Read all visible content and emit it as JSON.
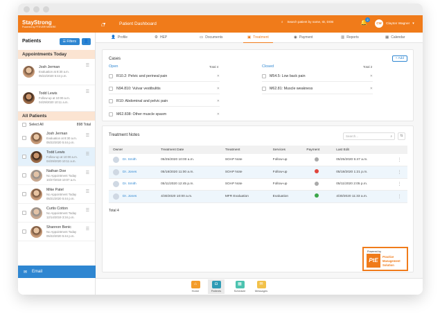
{
  "colors": {
    "brand": "#f07b1a",
    "accent": "#2e86d1",
    "section_bg": "#fbe4d2",
    "pay_neutral": "#aaaaaa",
    "pay_unpaid": "#e0463c",
    "pay_paid": "#3aa64a"
  },
  "header": {
    "brand": "StayStrong",
    "brand_sub": "Powered by PTEVERYWHERE",
    "page_title": "Patient Dashboard",
    "search_placeholder": "Search patient by name, ID, DOB",
    "notification_count": "2",
    "user_initials": "CW",
    "user_name": "Clayton Wagner"
  },
  "sidebar": {
    "title": "Patients",
    "filter_label": "Filters",
    "appointments_title": "Appointments Today",
    "appointments": [
      {
        "name": "Josh Jerman",
        "line1": "Evaluation at 8:30 a.m.",
        "line2": "05/22/2020 5:44 p.m."
      },
      {
        "name": "Todd Lewis",
        "line1": "Follow-up at 10:00 a.m.",
        "line2": "04/29/2020 10:11 a.m."
      }
    ],
    "all_patients_title": "All Patients",
    "select_all": "Select All",
    "total": "898 Total",
    "patients": [
      {
        "name": "Josh Jerman",
        "line1": "Evaluation at 8:30 a.m.",
        "line2": "05/22/2020 5:44 p.m."
      },
      {
        "name": "Todd Lewis",
        "line1": "Follow-up at 10:00 a.m.",
        "line2": "04/29/2020 10:11 a.m."
      },
      {
        "name": "Nathan Doe",
        "line1": "No Appointment Today",
        "line2": "10/27/2019 10:07 a.m."
      },
      {
        "name": "Mike Patel",
        "line1": "No Appointment Today",
        "line2": "05/21/2020 5:44 p.m."
      },
      {
        "name": "Curtis Cotton",
        "line1": "No Appointment Today",
        "line2": "12/14/2019 3:34 p.m."
      },
      {
        "name": "Shannon Benic",
        "line1": "No Appointment Today",
        "line2": "05/22/2020 5:44 p.m."
      }
    ],
    "email_label": "Email"
  },
  "tabs": [
    "Profile",
    "HEP",
    "Documents",
    "Treatment",
    "Payment",
    "Reports",
    "Calendar"
  ],
  "cases": {
    "title": "Cases",
    "add_label": "+ Add",
    "open_label": "Open",
    "open_total": "Total 4",
    "open": [
      "R10.2:  Pelvic and perineal pain",
      "N94.810:  Vulvar vestibulitis",
      "R10:  Abdominal and pelvic pain",
      "M62.838:  Other muscle spasm"
    ],
    "closed_label": "Closed",
    "closed_total": "Total 2",
    "closed": [
      "M54.5: Low back pain",
      "M62.81:  Muscle weakness"
    ]
  },
  "notes": {
    "title": "Treatment Notes",
    "search_placeholder": "Search...",
    "headers": [
      "Owner",
      "Treatment Date",
      "Treatment",
      "Services",
      "Payment",
      "Last Edit"
    ],
    "rows": [
      {
        "owner": "Dr. Smith",
        "date": "05/25/2020 10:00 a.m.",
        "treatment": "SOAP Note",
        "services": "Follow-up",
        "payment": "neutral",
        "last_edit": "05/25/2020 5:47 a.m."
      },
      {
        "owner": "Dr. Jones",
        "date": "05/18/2020 11:00 a.m.",
        "treatment": "SOAP Note",
        "services": "Follow-up",
        "payment": "unpaid",
        "last_edit": "05/18/2020 1:21 p.m."
      },
      {
        "owner": "Dr. Smith",
        "date": "05/11/2020 12:45 p.m.",
        "treatment": "SOAP Note",
        "services": "Follow-up",
        "payment": "neutral",
        "last_edit": "05/11/2020 2:05 p.m."
      },
      {
        "owner": "Dr. Jones",
        "date": "4/30/2020 10:00 a.m.",
        "treatment": "MFR Evaluation",
        "services": "Evaluation",
        "payment": "paid",
        "last_edit": "4/30/2020 11:33 a.m."
      }
    ],
    "total": "Total 4"
  },
  "badge": {
    "powered_by": "Powered by",
    "logo": "PtE",
    "line1": "Practice",
    "line2": "Management",
    "line3": "Solution"
  },
  "bottom_nav": [
    "Home",
    "Patients",
    "Schedule",
    "Messages"
  ]
}
